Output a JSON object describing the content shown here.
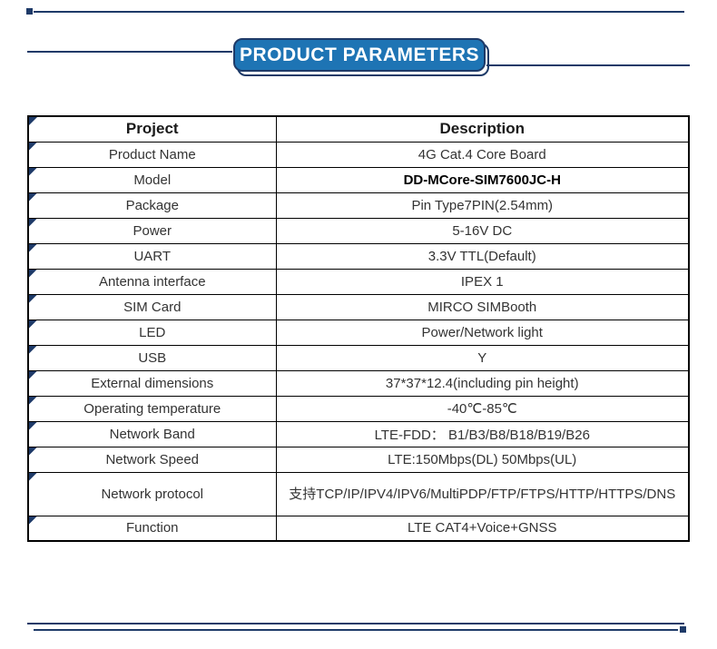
{
  "banner": {
    "title": "PRODUCT PARAMETERS"
  },
  "table": {
    "headers": {
      "project": "Project",
      "description": "Description"
    },
    "rows": [
      {
        "project": "Product Name",
        "description": "4G Cat.4 Core Board"
      },
      {
        "project": "Model",
        "description": "DD-MCore-SIM7600JC-H",
        "bold": true
      },
      {
        "project": "Package",
        "description": "Pin Type7PIN(2.54mm)"
      },
      {
        "project": "Power",
        "description": "5-16V DC"
      },
      {
        "project": "UART",
        "description": "3.3V TTL(Default)"
      },
      {
        "project": "Antenna interface",
        "description": "IPEX 1"
      },
      {
        "project": "SIM Card",
        "description": "MIRCO SIMBooth"
      },
      {
        "project": "LED",
        "description": "Power/Network light"
      },
      {
        "project": "USB",
        "description": "Y"
      },
      {
        "project": "External dimensions",
        "description": "37*37*12.4(including pin height)"
      },
      {
        "project": "Operating temperature",
        "description": "-40℃-85℃"
      },
      {
        "project": "Network Band",
        "description": "LTE-FDD：  B1/B3/B8/B18/B19/B26"
      },
      {
        "project": "Network Speed",
        "description": "LTE:150Mbps(DL)  50Mbps(UL)"
      },
      {
        "project": "Network protocol",
        "description": "支持TCP/IP/IPV4/IPV6/MultiPDP/FTP/FTPS/HTTP/HTTPS/DNS",
        "tall": true
      },
      {
        "project": "Function",
        "description": "LTE  CAT4+Voice+GNSS"
      }
    ]
  },
  "colors": {
    "banner_blue": "#1e74b4",
    "navy": "#1e3a68",
    "table_border": "#000000",
    "text": "#333333"
  }
}
